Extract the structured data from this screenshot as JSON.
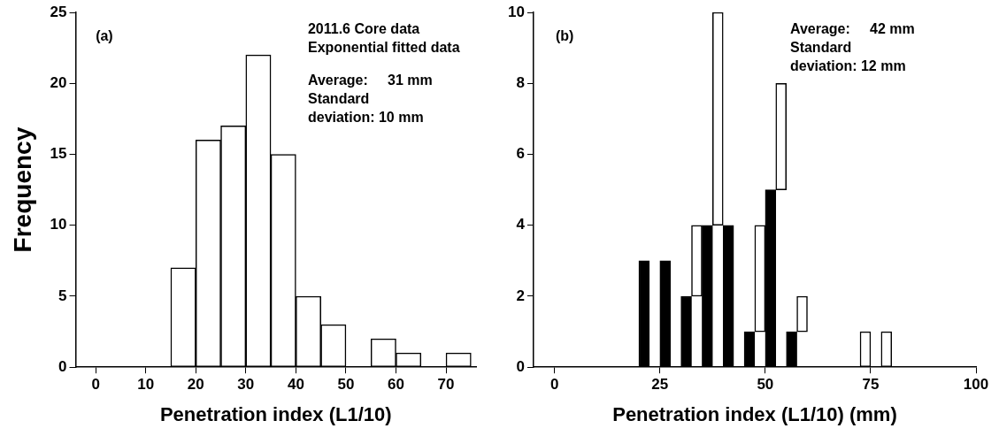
{
  "chart_data": [
    {
      "type": "histogram",
      "y_label": "Frequency",
      "x_label": "Penetration index (L1/10)",
      "annotations": [
        [
          "(a)"
        ],
        [
          "2011.6 Core data",
          "Exponential fitted data"
        ],
        [
          "Average:     31 mm",
          "Standard",
          "deviation: 10 mm"
        ]
      ],
      "bins": [
        15,
        20,
        25,
        30,
        35,
        40,
        45,
        50,
        55,
        60,
        65,
        70,
        75
      ],
      "values": [
        7,
        16,
        17,
        22,
        15,
        5,
        3,
        0,
        2,
        1,
        0,
        1
      ],
      "color": "#ffffff",
      "xlim": [
        -4,
        76
      ],
      "xticks": [
        0,
        10,
        20,
        30,
        40,
        50,
        60,
        70
      ],
      "ylim": [
        0,
        25
      ],
      "yticks": [
        0,
        5,
        10,
        15,
        20,
        25
      ],
      "grid": false
    },
    {
      "type": "histogram",
      "x_label": "Penetration index (L1/10) (mm)",
      "annotations": [
        [
          "(b)"
        ],
        [
          "Average:     42 mm",
          "Standard",
          "deviation: 12 mm"
        ]
      ],
      "bins": [
        20,
        25,
        30,
        35,
        40,
        45,
        50,
        55,
        60,
        65,
        70,
        75,
        80
      ],
      "series": [
        {
          "color": "#000000",
          "values": [
            3,
            3,
            2,
            4,
            4,
            1,
            5,
            1,
            0,
            0,
            0,
            0
          ]
        },
        {
          "color": "#ffffff",
          "values": [
            0,
            0,
            2,
            6,
            0,
            3,
            3,
            1,
            0,
            0,
            1,
            1
          ]
        }
      ],
      "stacked": true,
      "xlim": [
        -5,
        100
      ],
      "xticks": [
        0,
        25,
        50,
        75,
        100
      ],
      "ylim": [
        0,
        10
      ],
      "yticks": [
        0,
        2,
        4,
        6,
        8,
        10
      ],
      "grid": false
    }
  ]
}
